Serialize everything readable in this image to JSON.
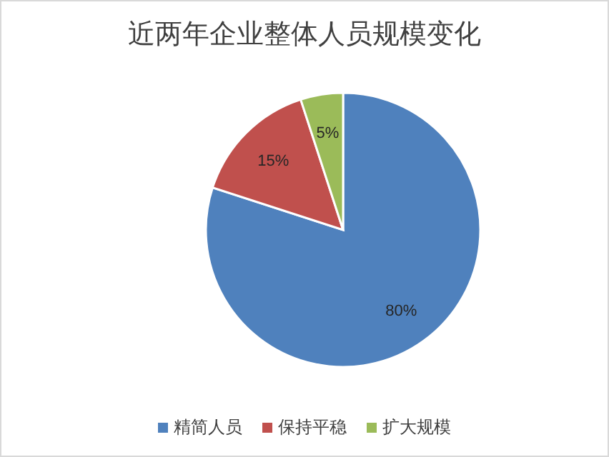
{
  "chart_data": {
    "type": "pie",
    "title": "近两年企业整体人员规模变化",
    "categories": [
      "精简人员",
      "保持平稳",
      "扩大规模"
    ],
    "values": [
      80,
      15,
      5
    ],
    "value_labels": [
      "80%",
      "15%",
      "5%"
    ],
    "colors": [
      "#4f81bd",
      "#c0504d",
      "#9bbb59"
    ],
    "legend": "bottom"
  }
}
